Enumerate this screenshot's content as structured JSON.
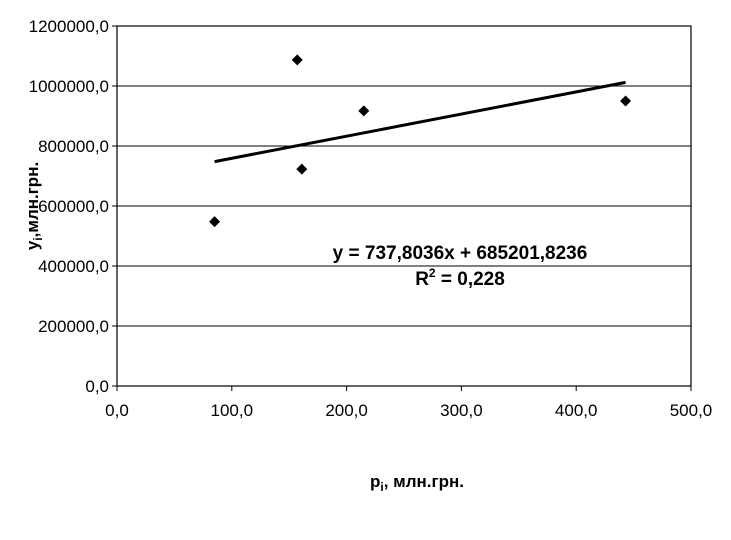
{
  "chart_data": {
    "type": "scatter",
    "xlabel": {
      "main": "p",
      "sub": "i",
      "rest": ", млн.грн."
    },
    "ylabel": {
      "main": "y",
      "sub": "i",
      "rest": ",млн.грн."
    },
    "xlim": [
      0,
      500
    ],
    "ylim": [
      0,
      1200000
    ],
    "x_ticks": [
      0,
      100,
      200,
      300,
      400,
      500
    ],
    "y_ticks": [
      0,
      200000,
      400000,
      600000,
      800000,
      1000000,
      1200000
    ],
    "x_tick_labels": [
      "0,0",
      "100,0",
      "200,0",
      "300,0",
      "400,0",
      "500,0"
    ],
    "y_tick_labels": [
      "0,0",
      "200000,0",
      "400000,0",
      "600000,0",
      "800000,0",
      "1000000,0",
      "1200000,0"
    ],
    "grid": {
      "horizontal": true,
      "vertical": false
    },
    "series": [
      {
        "marker": "diamond",
        "x": [
          85,
          157,
          161,
          215,
          443
        ],
        "y": [
          548000,
          1087000,
          723000,
          917000,
          950000
        ]
      }
    ],
    "trendline": {
      "type": "linear",
      "slope": 737.8036,
      "intercept": 685201.8236,
      "x_range": [
        85,
        443
      ]
    },
    "annotations": {
      "equation": "y = 737,8036x + 685201,8236",
      "r2_prefix": "R",
      "r2_sup": "2",
      "r2_suffix": " = 0,228"
    }
  }
}
